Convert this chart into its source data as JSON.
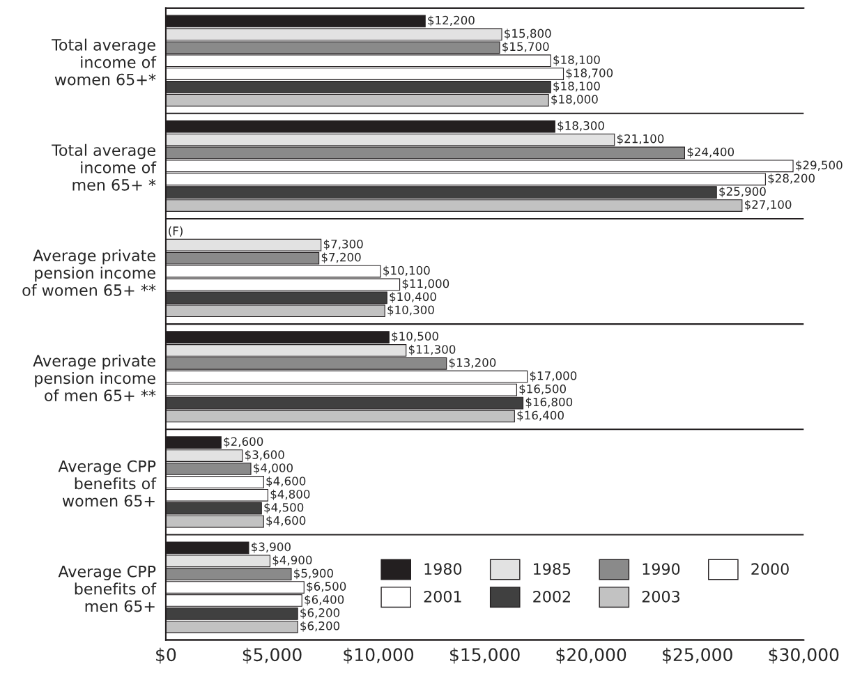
{
  "chart_data": {
    "type": "bar",
    "orientation": "horizontal",
    "categories": [
      "Total average\nincome of\nwomen 65+*",
      "Total average\nincome of\nmen 65+ *",
      "Average private\npension income\nof women 65+ **",
      "Average private\npension income\nof men 65+ **",
      "Average CPP\nbenefits of\nwomen 65+",
      "Average CPP\nbenefits of\nmen 65+"
    ],
    "series": [
      {
        "name": "1980",
        "color": "#231f20",
        "values": [
          12200,
          18300,
          null,
          10500,
          2600,
          3900
        ],
        "value_labels": [
          "$12,200",
          "$18,300",
          "(F)",
          "$10,500",
          "$2,600",
          "$3,900"
        ]
      },
      {
        "name": "1985",
        "color": "#e2e2e2",
        "values": [
          15800,
          21100,
          7300,
          11300,
          3600,
          4900
        ],
        "value_labels": [
          "$15,800",
          "$21,100",
          "$7,300",
          "$11,300",
          "$3,600",
          "$4,900"
        ]
      },
      {
        "name": "1990",
        "color": "#8a8a8a",
        "values": [
          15700,
          24400,
          7200,
          13200,
          4000,
          5900
        ],
        "value_labels": [
          "$15,700",
          "$24,400",
          "$7,200",
          "$13,200",
          "$4,000",
          "$5,900"
        ]
      },
      {
        "name": "2000",
        "color": "#ffffff",
        "values": [
          18100,
          29500,
          10100,
          17000,
          4600,
          6500
        ],
        "value_labels": [
          "$18,100",
          "$29,500",
          "$10,100",
          "$17,000",
          "$4,600",
          "$6,500"
        ]
      },
      {
        "name": "2001",
        "color": "#ffffff",
        "values": [
          18700,
          28200,
          11000,
          16500,
          4800,
          6400
        ],
        "value_labels": [
          "$18,700",
          "$28,200",
          "$11,000",
          "$16,500",
          "$4,800",
          "$6,400"
        ]
      },
      {
        "name": "2002",
        "color": "#404040",
        "values": [
          18100,
          25900,
          10400,
          16800,
          4500,
          6200
        ],
        "value_labels": [
          "$18,100",
          "$25,900",
          "$10,400",
          "$16,800",
          "$4,500",
          "$6,200"
        ]
      },
      {
        "name": "2003",
        "color": "#c2c2c2",
        "values": [
          18000,
          27100,
          10300,
          16400,
          4600,
          6200
        ],
        "value_labels": [
          "$18,000",
          "$27,100",
          "$10,300",
          "$16,400",
          "$4,600",
          "$6,200"
        ]
      }
    ],
    "xlim": [
      0,
      30000
    ],
    "xticks": [
      {
        "value": 0,
        "label": "$0"
      },
      {
        "value": 5000,
        "label": "$5,000"
      },
      {
        "value": 10000,
        "label": "$10,000"
      },
      {
        "value": 15000,
        "label": "$15,000"
      },
      {
        "value": 20000,
        "label": "$20,000"
      },
      {
        "value": 25000,
        "label": "$25,000"
      },
      {
        "value": 30000,
        "label": "$30,000"
      }
    ],
    "grid": "y",
    "legend": "bottom right"
  }
}
